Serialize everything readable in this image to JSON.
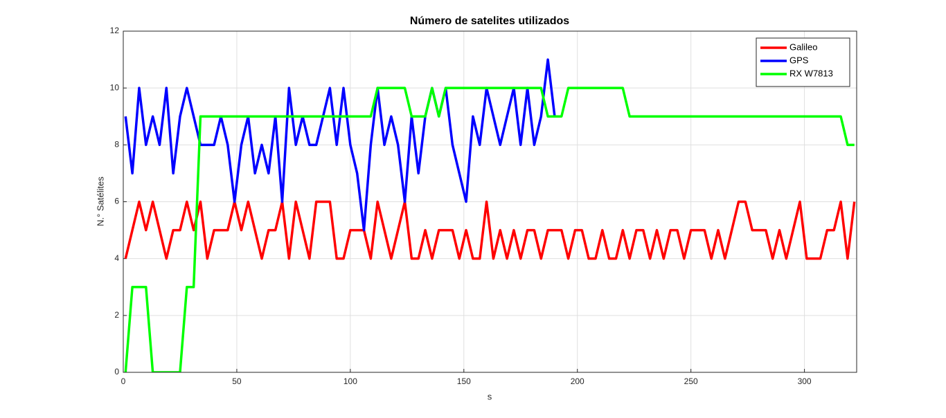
{
  "chart_data": {
    "type": "line",
    "title": "Número de satelites utilizados",
    "x_label": "s",
    "y_label": "N.° Satélites",
    "xlim": [
      0,
      323
    ],
    "ylim": [
      0,
      12
    ],
    "xticks": [
      0,
      50,
      100,
      150,
      200,
      250,
      300
    ],
    "yticks": [
      0,
      2,
      4,
      6,
      8,
      10,
      12
    ],
    "grid": true,
    "legend": "northeast",
    "x": [
      1,
      4,
      7,
      10,
      13,
      16,
      19,
      22,
      25,
      28,
      31,
      34,
      37,
      40,
      43,
      46,
      49,
      52,
      55,
      58,
      61,
      64,
      67,
      70,
      73,
      76,
      79,
      82,
      85,
      88,
      91,
      94,
      97,
      100,
      103,
      106,
      109,
      112,
      115,
      118,
      121,
      124,
      127,
      130,
      133,
      136,
      139,
      142,
      145,
      148,
      151,
      154,
      157,
      160,
      163,
      166,
      169,
      172,
      175,
      178,
      181,
      184,
      187,
      190,
      193,
      196,
      199,
      202,
      205,
      208,
      211,
      214,
      217,
      220,
      223,
      226,
      229,
      232,
      235,
      238,
      241,
      244,
      247,
      250,
      253,
      256,
      259,
      262,
      265,
      268,
      271,
      274,
      277,
      280,
      283,
      286,
      289,
      292,
      295,
      298,
      301,
      304,
      307,
      310,
      313,
      316,
      319,
      322
    ],
    "series": [
      {
        "name": "Galileo",
        "color": "#ff0000",
        "values": [
          4,
          5,
          6,
          5,
          6,
          5,
          4,
          5,
          5,
          6,
          5,
          6,
          4,
          5,
          5,
          5,
          6,
          5,
          6,
          5,
          4,
          5,
          5,
          6,
          4,
          6,
          5,
          4,
          6,
          6,
          6,
          4,
          4,
          5,
          5,
          5,
          4,
          6,
          5,
          4,
          5,
          6,
          4,
          4,
          5,
          4,
          5,
          5,
          5,
          4,
          5,
          4,
          4,
          6,
          4,
          5,
          4,
          5,
          4,
          5,
          5,
          4,
          5,
          5,
          5,
          4,
          5,
          5,
          4,
          4,
          5,
          4,
          4,
          5,
          4,
          5,
          5,
          4,
          5,
          4,
          5,
          5,
          4,
          5,
          5,
          5,
          4,
          5,
          4,
          5,
          6,
          6,
          5,
          5,
          5,
          4,
          5,
          4,
          5,
          6,
          4,
          4,
          4,
          5,
          5,
          6,
          4,
          6
        ]
      },
      {
        "name": "GPS",
        "color": "#0000ff",
        "values": [
          9,
          7,
          10,
          8,
          9,
          8,
          10,
          7,
          9,
          10,
          9,
          8,
          8,
          8,
          9,
          8,
          6,
          8,
          9,
          7,
          8,
          7,
          9,
          6,
          10,
          8,
          9,
          8,
          8,
          9,
          10,
          8,
          10,
          8,
          7,
          5,
          8,
          10,
          8,
          9,
          8,
          6,
          9,
          7,
          9,
          10,
          9,
          10,
          8,
          7,
          6,
          9,
          8,
          10,
          9,
          8,
          9,
          10,
          8,
          10,
          8,
          9,
          11,
          9,
          null,
          null,
          null,
          null,
          null,
          null,
          null,
          null,
          null,
          null,
          null,
          null,
          null,
          null,
          null,
          null,
          null,
          null,
          null,
          null,
          null,
          null,
          null,
          null,
          null,
          null,
          null,
          null,
          null,
          null,
          null,
          null,
          null,
          null,
          null,
          null,
          null,
          null,
          null,
          null,
          null,
          null,
          null,
          null
        ]
      },
      {
        "name": "RX W7813",
        "color": "#00ff00",
        "values": [
          0,
          3,
          3,
          3,
          0,
          0,
          0,
          0,
          0,
          3,
          3,
          9,
          9,
          9,
          9,
          9,
          9,
          9,
          9,
          9,
          9,
          9,
          9,
          9,
          9,
          9,
          9,
          9,
          9,
          9,
          9,
          9,
          9,
          9,
          9,
          9,
          9,
          10,
          10,
          10,
          10,
          10,
          9,
          9,
          9,
          10,
          9,
          10,
          10,
          10,
          10,
          10,
          10,
          10,
          10,
          10,
          10,
          10,
          10,
          10,
          10,
          10,
          9,
          9,
          9,
          10,
          10,
          10,
          10,
          10,
          10,
          10,
          10,
          10,
          9,
          9,
          9,
          9,
          9,
          9,
          9,
          9,
          9,
          9,
          9,
          9,
          9,
          9,
          9,
          9,
          9,
          9,
          9,
          9,
          9,
          9,
          9,
          9,
          9,
          9,
          9,
          9,
          9,
          9,
          9,
          9,
          8,
          8
        ]
      }
    ]
  }
}
